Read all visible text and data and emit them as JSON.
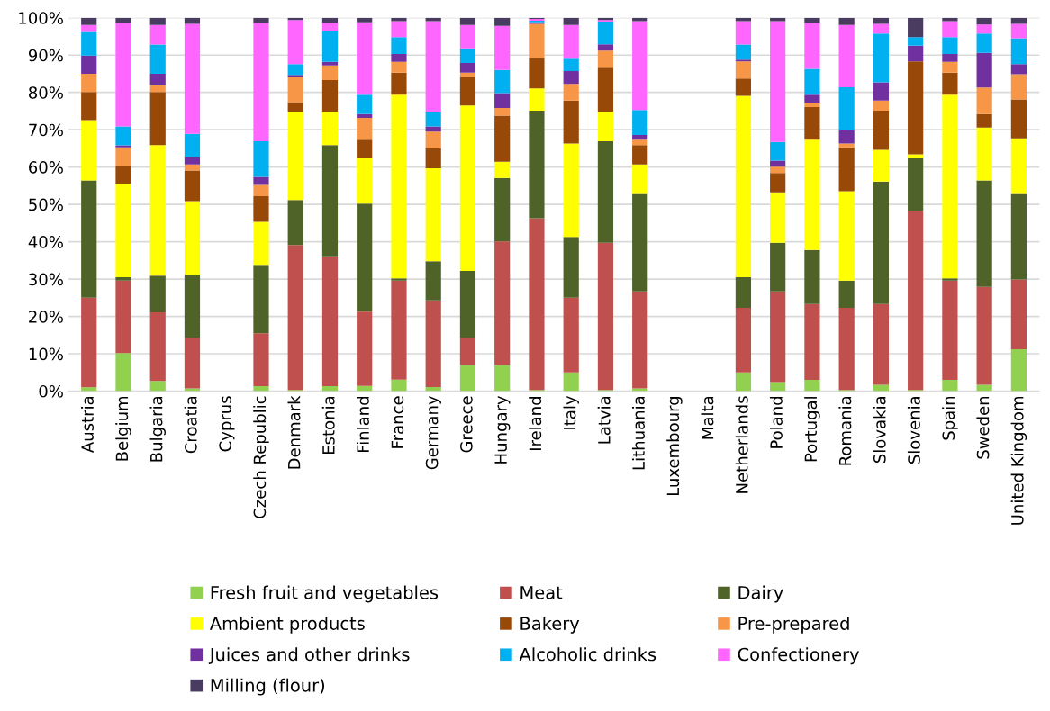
{
  "chart_data": {
    "type": "bar",
    "stacked": true,
    "categories": [
      "Austria",
      "Belgium",
      "Bulgaria",
      "Croatia",
      "Cyprus",
      "Czech Republic",
      "Denmark",
      "Estonia",
      "Finland",
      "France",
      "Germany",
      "Greece",
      "Hungary",
      "Ireland",
      "Italy",
      "Latvia",
      "Lithuania",
      "Luxembourg",
      "Malta",
      "Netherlands",
      "Poland",
      "Portugal",
      "Romania",
      "Slovakia",
      "Slovenia",
      "Spain",
      "Sweden",
      "United Kingdom"
    ],
    "series": [
      {
        "name": "Fresh fruit and vegetables",
        "color": "#92d050",
        "values": [
          1,
          10.2,
          2.7,
          0.7,
          null,
          1.3,
          0.3,
          1.3,
          1.4,
          3.1,
          1.1,
          7,
          7,
          0.3,
          5,
          0.3,
          0.7,
          null,
          null,
          5,
          2.4,
          3,
          0.3,
          1.7,
          0.3,
          3,
          1.7,
          11.2
        ]
      },
      {
        "name": "Meat",
        "color": "#c0504d",
        "values": [
          24,
          19.4,
          18.4,
          13.5,
          null,
          14.2,
          38.8,
          34.8,
          19.9,
          26.5,
          23.2,
          7.2,
          33.1,
          46,
          20,
          39.4,
          26,
          null,
          null,
          17.3,
          24.3,
          20.3,
          22,
          21.6,
          47.9,
          26.6,
          26.2,
          18.7
        ]
      },
      {
        "name": "Dairy",
        "color": "#4f6228",
        "values": [
          31.4,
          0.9,
          9.8,
          17,
          null,
          18.3,
          12.1,
          29.8,
          28.9,
          0.6,
          10.5,
          18,
          17,
          28.8,
          16.3,
          27.2,
          26.1,
          null,
          null,
          8.2,
          13,
          14.5,
          7.3,
          32.8,
          14.1,
          0.6,
          28.5,
          22.9
        ]
      },
      {
        "name": "Ambient products",
        "color": "#ffff00",
        "values": [
          16.2,
          25,
          35,
          19.7,
          null,
          11.5,
          23.6,
          8.9,
          12.1,
          49.2,
          24.9,
          44.3,
          4.3,
          6,
          25,
          7.9,
          7.9,
          null,
          null,
          48.6,
          13.5,
          29.5,
          23.9,
          8.5,
          1.1,
          49.2,
          14.2,
          14.9
        ]
      },
      {
        "name": "Bakery",
        "color": "#984807",
        "values": [
          7.5,
          4.9,
          14.2,
          8.2,
          null,
          6.9,
          2.6,
          8.5,
          5,
          5.9,
          5.3,
          7.5,
          12.4,
          8.2,
          11.5,
          11.8,
          5.2,
          null,
          null,
          4.6,
          5.2,
          8.8,
          11.8,
          10.5,
          24.9,
          5.9,
          3.6,
          10.4
        ]
      },
      {
        "name": "Pre-prepared",
        "color": "#f79646",
        "values": [
          4.9,
          4.9,
          1.9,
          1.6,
          null,
          3,
          6.6,
          3.9,
          5.9,
          2.9,
          4.5,
          1.3,
          2,
          9.1,
          4.5,
          4.6,
          1.4,
          null,
          null,
          4.6,
          1.7,
          1.2,
          1,
          2.7,
          0,
          2.9,
          7.1,
          6.8
        ]
      },
      {
        "name": "Juices and other drinks",
        "color": "#7030a0",
        "values": [
          4.9,
          0.5,
          3,
          2,
          null,
          2.2,
          0.7,
          1,
          1,
          2.1,
          1.4,
          2.6,
          4,
          0.4,
          3.4,
          1.7,
          1.3,
          null,
          null,
          0.5,
          1.6,
          2.1,
          3.5,
          4.9,
          4.2,
          2.1,
          9.3,
          2.7
        ]
      },
      {
        "name": "Alcoholic drinks",
        "color": "#00b0f0",
        "values": [
          6.3,
          5.1,
          7.8,
          6.2,
          null,
          9.5,
          2.9,
          8.3,
          5.2,
          4.5,
          3.9,
          3.9,
          6.2,
          0.4,
          3.3,
          6.1,
          6.7,
          null,
          null,
          4,
          5,
          6.9,
          11.6,
          13.1,
          2.3,
          4.5,
          5.2,
          6.9
        ]
      },
      {
        "name": "Confectionery",
        "color": "#ff66ff",
        "values": [
          1.9,
          27.8,
          5.3,
          29.5,
          null,
          31.8,
          11.8,
          2.2,
          19.4,
          4.3,
          24.3,
          6.3,
          11.8,
          0.5,
          9.1,
          0.4,
          23.8,
          null,
          null,
          6.3,
          32.4,
          12.4,
          16.7,
          2.6,
          0,
          4.3,
          2.4,
          3.9
        ]
      },
      {
        "name": "Milling (flour)",
        "color": "#4a3b60",
        "values": [
          1.9,
          1.3,
          1.9,
          1.6,
          null,
          1.3,
          0.6,
          1.3,
          1.2,
          0.9,
          0.9,
          1.9,
          2.2,
          0.3,
          1.9,
          0.6,
          0.9,
          null,
          null,
          0.9,
          0.9,
          1.3,
          1.9,
          1.6,
          5.2,
          0.9,
          1.8,
          1.6
        ]
      }
    ],
    "ylim": [
      0,
      100
    ],
    "yticks": [
      {
        "value": 0,
        "label": "0%"
      },
      {
        "value": 10,
        "label": "10%"
      },
      {
        "value": 20,
        "label": "20%"
      },
      {
        "value": 30,
        "label": "30%"
      },
      {
        "value": 40,
        "label": "40%"
      },
      {
        "value": 50,
        "label": "50%"
      },
      {
        "value": 60,
        "label": "60%"
      },
      {
        "value": 70,
        "label": "70%"
      },
      {
        "value": 80,
        "label": "80%"
      },
      {
        "value": 90,
        "label": "90%"
      },
      {
        "value": 100,
        "label": "100%"
      }
    ],
    "grid": "y",
    "legend": "bottom"
  }
}
